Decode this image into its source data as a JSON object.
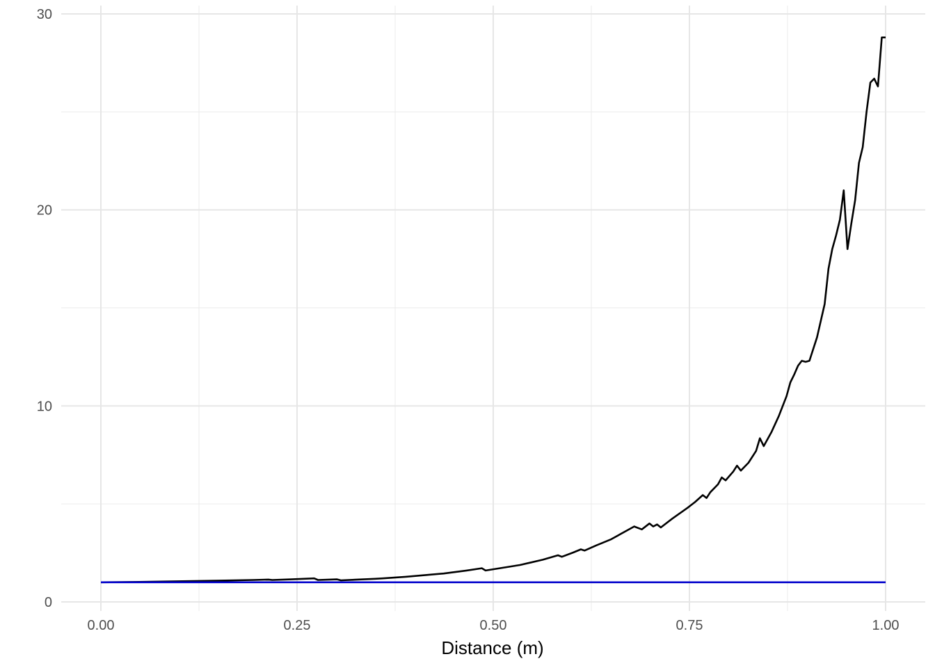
{
  "chart_data": {
    "type": "line",
    "title": "",
    "xlabel": "Distance (m)",
    "ylabel": "",
    "xlim": [
      -0.1,
      1.03
    ],
    "ylim": [
      -0.5,
      30.2
    ],
    "x_ticks": [
      0.0,
      0.25,
      0.5,
      0.75,
      1.0
    ],
    "x_tick_labels": [
      "0.00",
      "0.25",
      "0.50",
      "0.75",
      "1.00"
    ],
    "y_ticks": [
      0,
      10,
      20,
      30
    ],
    "y_tick_labels": [
      "0",
      "10",
      "20",
      "30"
    ],
    "grid": true,
    "legend": "none",
    "series": [
      {
        "color": "#000000",
        "points": [
          [
            0.0,
            1.0
          ],
          [
            0.05,
            1.02
          ],
          [
            0.1,
            1.05
          ],
          [
            0.15,
            1.08
          ],
          [
            0.2,
            1.12
          ],
          [
            0.22,
            1.14
          ],
          [
            0.225,
            1.12
          ],
          [
            0.25,
            1.15
          ],
          [
            0.28,
            1.2
          ],
          [
            0.285,
            1.12
          ],
          [
            0.31,
            1.15
          ],
          [
            0.315,
            1.1
          ],
          [
            0.36,
            1.18
          ],
          [
            0.37,
            1.2
          ],
          [
            0.4,
            1.28
          ],
          [
            0.45,
            1.45
          ],
          [
            0.48,
            1.6
          ],
          [
            0.5,
            1.72
          ],
          [
            0.505,
            1.6
          ],
          [
            0.55,
            1.88
          ],
          [
            0.58,
            2.15
          ],
          [
            0.6,
            2.38
          ],
          [
            0.605,
            2.3
          ],
          [
            0.62,
            2.52
          ],
          [
            0.63,
            2.68
          ],
          [
            0.635,
            2.62
          ],
          [
            0.65,
            2.88
          ],
          [
            0.67,
            3.2
          ],
          [
            0.7,
            3.85
          ],
          [
            0.71,
            3.7
          ],
          [
            0.72,
            4.0
          ],
          [
            0.725,
            3.85
          ],
          [
            0.73,
            3.95
          ],
          [
            0.735,
            3.8
          ],
          [
            0.75,
            4.25
          ],
          [
            0.77,
            4.8
          ],
          [
            0.78,
            5.1
          ],
          [
            0.79,
            5.45
          ],
          [
            0.795,
            5.3
          ],
          [
            0.8,
            5.6
          ],
          [
            0.81,
            6.0
          ],
          [
            0.815,
            6.35
          ],
          [
            0.82,
            6.2
          ],
          [
            0.83,
            6.65
          ],
          [
            0.835,
            6.95
          ],
          [
            0.84,
            6.7
          ],
          [
            0.85,
            7.1
          ],
          [
            0.86,
            7.7
          ],
          [
            0.865,
            8.35
          ],
          [
            0.87,
            7.95
          ],
          [
            0.88,
            8.65
          ],
          [
            0.89,
            9.5
          ],
          [
            0.9,
            10.5
          ],
          [
            0.905,
            11.2
          ],
          [
            0.91,
            11.6
          ],
          [
            0.915,
            12.05
          ],
          [
            0.92,
            12.3
          ],
          [
            0.925,
            12.25
          ],
          [
            0.93,
            12.3
          ],
          [
            0.94,
            13.5
          ],
          [
            0.95,
            15.2
          ],
          [
            0.955,
            17.0
          ],
          [
            0.96,
            18.0
          ],
          [
            0.965,
            18.7
          ],
          [
            0.97,
            19.5
          ],
          [
            0.975,
            21.0
          ],
          [
            0.98,
            18.0
          ],
          [
            0.985,
            19.3
          ],
          [
            0.99,
            20.5
          ],
          [
            0.995,
            22.4
          ],
          [
            1.0,
            23.2
          ],
          [
            1.005,
            25.0
          ],
          [
            1.01,
            26.5
          ],
          [
            1.015,
            26.7
          ],
          [
            1.02,
            26.3
          ],
          [
            1.025,
            28.8
          ],
          [
            1.03,
            28.8
          ]
        ]
      },
      {
        "color": "#0000cc",
        "points": [
          [
            0.0,
            1.0
          ],
          [
            1.0,
            1.0
          ]
        ]
      }
    ]
  }
}
